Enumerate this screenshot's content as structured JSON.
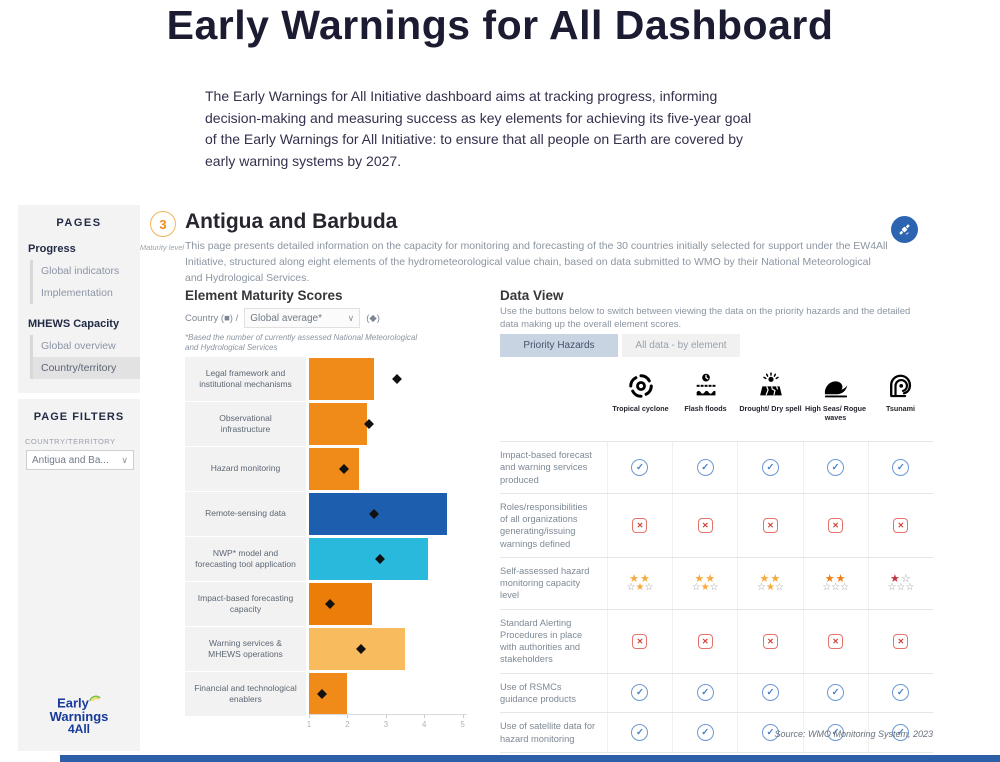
{
  "page": {
    "title": "Early Warnings for All Dashboard",
    "intro": "The Early Warnings for All Initiative dashboard aims at tracking progress, informing decision-making and measuring success as key elements for achieving its five-year goal of the Early Warnings for All Initiative: to ensure that all people on Earth are covered by early warning systems by 2027."
  },
  "sidebar": {
    "pages_header": "PAGES",
    "groups": [
      {
        "title": "Progress",
        "items": [
          {
            "label": "Global indicators",
            "selected": false
          },
          {
            "label": "Implementation",
            "selected": false
          }
        ]
      },
      {
        "title": "MHEWS Capacity",
        "items": [
          {
            "label": "Global overview",
            "selected": false
          },
          {
            "label": "Country/territory",
            "selected": true
          }
        ]
      }
    ],
    "filters_header": "PAGE FILTERS",
    "filter_label": "COUNTRY/TERRITORY",
    "filter_value": "Antigua and Ba...",
    "logo_lines": [
      "Early",
      "Warnings",
      "4All"
    ]
  },
  "header": {
    "maturity_value": "3",
    "maturity_label": "Maturity level",
    "country": "Antigua and Barbuda",
    "description": "This page presents detailed information on the capacity for monitoring and forecasting of the 30 countries initially selected for support under the EW4All Initiative, structured along eight elements of the hydrometeorological value chain, based on data submitted to WMO by their National Meteorological and Hydrological Services."
  },
  "maturity_chart": {
    "title": "Element Maturity Scores",
    "legend_country": "Country (■) /",
    "dropdown_value": "Global average*",
    "legend_diamond": "(◆)",
    "footnote": "*Based the number of currently assessed National Meteorological and Hydrological Services",
    "axis_ticks": [
      "1",
      "2",
      "3",
      "4",
      "5"
    ]
  },
  "chart_data": {
    "type": "bar",
    "title": "Element Maturity Scores",
    "orientation": "horizontal",
    "categories": [
      "Legal framework and institutional mechanisms",
      "Observational infrastructure",
      "Hazard monitoring",
      "Remote-sensing data",
      "NWP* model and forecasting tool application",
      "Impact-based forecasting capacity",
      "Warning services & MHEWS operations",
      "Financial and technological enablers"
    ],
    "series": [
      {
        "name": "Country (bar)",
        "values": [
          2.7,
          2.5,
          2.3,
          4.6,
          4.1,
          2.65,
          3.5,
          2.0
        ]
      },
      {
        "name": "Global average (diamond)",
        "values": [
          3.3,
          2.55,
          1.9,
          2.7,
          2.85,
          1.55,
          2.35,
          1.35
        ]
      }
    ],
    "bar_colors": [
      "#F08A18",
      "#F08A18",
      "#F08A18",
      "#1D5FAE",
      "#29B9DC",
      "#EC7D09",
      "#F8BB5E",
      "#F08A18"
    ],
    "xlim": [
      1,
      5
    ],
    "grid": false,
    "legend_position": "top"
  },
  "data_view": {
    "title": "Data View",
    "description": "Use the buttons below to switch between viewing the data on the priority hazards and the detailed data making up the overall element scores.",
    "buttons": [
      {
        "label": "Priority Hazards",
        "selected": true
      },
      {
        "label": "All data - by element",
        "selected": false
      }
    ],
    "hazards": [
      {
        "icon": "cyclone-icon",
        "label": "Tropical cyclone"
      },
      {
        "icon": "flash-floods-icon",
        "label": "Flash floods"
      },
      {
        "icon": "drought-icon",
        "label": "Drought/ Dry spell"
      },
      {
        "icon": "high-seas-icon",
        "label": "High Seas/ Rogue waves"
      },
      {
        "icon": "tsunami-icon",
        "label": "Tsunami"
      }
    ],
    "rows": [
      {
        "label": "Impact-based forecast and warning services produced",
        "cells": [
          "check",
          "check",
          "check",
          "check",
          "check"
        ]
      },
      {
        "label": "Roles/responsibilities of all organizations generating/issuing warnings defined",
        "cells": [
          "cross",
          "cross",
          "cross",
          "cross",
          "cross"
        ]
      },
      {
        "label": "Self-assessed hazard monitoring capacity level",
        "cells": [
          {
            "stars": [
              1,
              1,
              0,
              1,
              0
            ],
            "filled": 3,
            "color": "#F9A83C"
          },
          {
            "stars": [
              1,
              1,
              0,
              1,
              0
            ],
            "filled": 3,
            "color": "#F9A83C"
          },
          {
            "stars": [
              1,
              1,
              0,
              1,
              0
            ],
            "filled": 3,
            "color": "#F9A83C"
          },
          {
            "stars": [
              1,
              1,
              0,
              0,
              0
            ],
            "filled": 2,
            "color": "#EF7D14"
          },
          {
            "stars": [
              1,
              0,
              0,
              0,
              0
            ],
            "filled": 1,
            "color": "#C8323E"
          }
        ]
      },
      {
        "label": "Standard Alerting Procedures in place with authorities and stakeholders",
        "cells": [
          "cross",
          "cross",
          "cross",
          "cross",
          "cross"
        ]
      },
      {
        "label": "Use of RSMCs guidance products",
        "cells": [
          "check",
          "check",
          "check",
          "check",
          "check"
        ]
      },
      {
        "label": "Use of satellite data for hazard monitoring",
        "cells": [
          "check",
          "check",
          "check",
          "check",
          "check"
        ]
      }
    ],
    "source": "Source: WMO Monitoring System, 2023"
  },
  "colors": {
    "accent_orange": "#F08A18",
    "accent_blue": "#1D5FAE",
    "accent_cyan": "#29B9DC",
    "accent_light_orange": "#F8BB5E",
    "check_blue": "#4A80C4",
    "cross_red": "#CF4036",
    "star_outline": "#9B9B9B",
    "footer_blue": "#2D5FA8",
    "selected_button_bg": "#C9D4E2"
  }
}
